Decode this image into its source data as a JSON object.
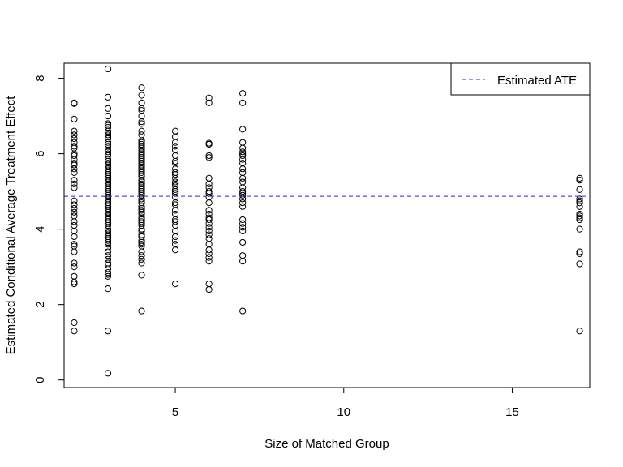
{
  "chart_data": {
    "type": "scatter",
    "title": "",
    "xlabel": "Size of Matched Group",
    "ylabel": "Estimated Conditional Average Treatment Effect",
    "xlim": [
      1.7,
      17.3
    ],
    "ylim": [
      -0.2,
      8.4
    ],
    "xticks": [
      5,
      10,
      15
    ],
    "yticks": [
      0,
      2,
      4,
      6,
      8
    ],
    "grid": false,
    "legend": {
      "position": "top-right",
      "entries": [
        {
          "label": "Estimated ATE",
          "style": "dashed",
          "color": "#2b2bd6"
        }
      ]
    },
    "reference_line": {
      "label": "Estimated ATE",
      "y": 4.87,
      "color": "#2b2bd6",
      "style": "dashed"
    },
    "marker_color": "#000000",
    "series": [
      {
        "x": 2,
        "y": [
          7.35,
          7.33,
          6.92,
          6.6,
          6.5,
          6.4,
          6.3,
          6.2,
          6.15,
          6.0,
          5.95,
          5.85,
          5.75,
          5.7,
          5.6,
          5.5,
          5.3,
          5.2,
          5.1,
          4.75,
          4.65,
          4.55,
          4.45,
          4.35,
          4.2,
          4.1,
          3.95,
          3.8,
          3.6,
          3.55,
          3.4,
          3.1,
          3.0,
          2.75,
          2.6,
          2.55,
          1.52,
          1.3
        ]
      },
      {
        "x": 3,
        "y": [
          8.25,
          7.5,
          7.2,
          7.0,
          6.8,
          6.75,
          6.7,
          6.6,
          6.55,
          6.5,
          6.45,
          6.4,
          6.3,
          6.25,
          6.2,
          6.1,
          6.05,
          6.0,
          5.95,
          5.85,
          5.8,
          5.75,
          5.7,
          5.65,
          5.6,
          5.55,
          5.5,
          5.45,
          5.4,
          5.35,
          5.3,
          5.25,
          5.2,
          5.15,
          5.1,
          5.05,
          5.0,
          4.95,
          4.9,
          4.85,
          4.8,
          4.75,
          4.7,
          4.65,
          4.6,
          4.55,
          4.5,
          4.45,
          4.4,
          4.35,
          4.3,
          4.25,
          4.2,
          4.15,
          4.1,
          4.0,
          3.95,
          3.9,
          3.85,
          3.8,
          3.75,
          3.7,
          3.65,
          3.6,
          3.5,
          3.4,
          3.3,
          3.2,
          3.1,
          3.05,
          2.95,
          2.85,
          2.8,
          2.75,
          2.42,
          1.3,
          0.18
        ]
      },
      {
        "x": 4,
        "y": [
          7.75,
          7.55,
          7.35,
          7.2,
          7.15,
          7.0,
          6.85,
          6.8,
          6.6,
          6.5,
          6.35,
          6.3,
          6.25,
          6.2,
          6.15,
          6.1,
          6.05,
          6.0,
          5.95,
          5.9,
          5.85,
          5.8,
          5.75,
          5.7,
          5.65,
          5.6,
          5.55,
          5.5,
          5.45,
          5.4,
          5.3,
          5.25,
          5.2,
          5.15,
          5.1,
          5.05,
          5.0,
          4.95,
          4.9,
          4.8,
          4.75,
          4.7,
          4.6,
          4.55,
          4.5,
          4.45,
          4.4,
          4.3,
          4.25,
          4.2,
          4.15,
          4.1,
          4.0,
          3.95,
          3.85,
          3.8,
          3.7,
          3.65,
          3.6,
          3.55,
          3.4,
          3.3,
          3.2,
          3.1,
          2.78,
          1.83
        ]
      },
      {
        "x": 5,
        "y": [
          6.6,
          6.45,
          6.3,
          6.2,
          6.1,
          5.95,
          5.8,
          5.75,
          5.6,
          5.5,
          5.45,
          5.35,
          5.25,
          5.2,
          5.15,
          5.05,
          5.0,
          4.95,
          4.85,
          4.7,
          4.65,
          4.5,
          4.4,
          4.25,
          4.2,
          4.1,
          3.95,
          3.8,
          3.7,
          3.6,
          3.45,
          2.55
        ]
      },
      {
        "x": 6,
        "y": [
          7.48,
          7.35,
          6.28,
          6.25,
          5.95,
          5.9,
          5.35,
          5.2,
          5.1,
          5.0,
          4.95,
          4.85,
          4.7,
          4.5,
          4.4,
          4.3,
          4.25,
          4.15,
          4.05,
          3.95,
          3.85,
          3.75,
          3.6,
          3.45,
          3.35,
          3.25,
          3.15,
          2.55,
          2.4
        ]
      },
      {
        "x": 7,
        "y": [
          7.6,
          7.35,
          6.65,
          6.3,
          6.15,
          6.05,
          6.0,
          5.95,
          5.85,
          5.75,
          5.6,
          5.5,
          5.35,
          5.25,
          5.1,
          5.0,
          4.95,
          4.9,
          4.8,
          4.7,
          4.6,
          4.25,
          4.15,
          4.05,
          3.95,
          3.65,
          3.3,
          3.15,
          1.83
        ]
      },
      {
        "x": 17,
        "y": [
          5.35,
          5.3,
          5.05,
          4.8,
          4.75,
          4.7,
          4.6,
          4.4,
          4.35,
          4.3,
          4.25,
          4.0,
          3.4,
          3.35,
          3.08,
          1.3
        ]
      }
    ]
  }
}
